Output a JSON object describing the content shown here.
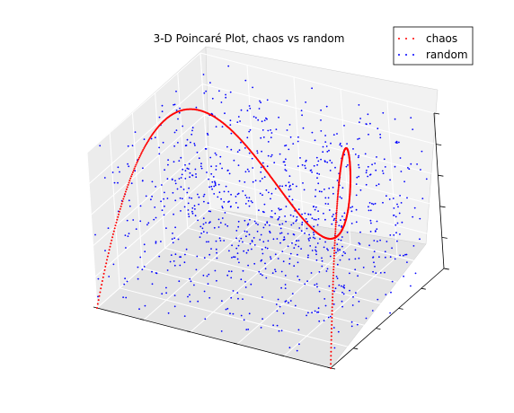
{
  "chart_data": {
    "type": "scatter",
    "dimensions": 3,
    "title": "3-D Poincaré Plot, chaos vs random",
    "xlabel": "",
    "ylabel": "",
    "zlabel": "",
    "xlim": [
      0,
      1
    ],
    "ylim": [
      0,
      1
    ],
    "zlim": [
      0,
      1
    ],
    "grid": true,
    "legend_position": "top-right",
    "series": [
      {
        "name": "chaos",
        "color": "#ff0000",
        "marker": "point",
        "description_of_shape": "logistic map r=4 triples (x_n, x_n+1, x_n+2)",
        "points": [
          [
            0.02,
            0.0784,
            0.2891
          ],
          [
            0.05,
            0.19,
            0.6156
          ],
          [
            0.08,
            0.2944,
            0.8313
          ],
          [
            0.11,
            0.3916,
            0.953
          ],
          [
            0.14,
            0.4816,
            0.9986
          ],
          [
            0.17,
            0.5644,
            0.9834
          ],
          [
            0.2,
            0.64,
            0.9216
          ],
          [
            0.23,
            0.7084,
            0.8263
          ],
          [
            0.26,
            0.7696,
            0.7092
          ],
          [
            0.29,
            0.8236,
            0.5811
          ],
          [
            0.32,
            0.8704,
            0.4512
          ],
          [
            0.35,
            0.91,
            0.3276
          ],
          [
            0.38,
            0.9424,
            0.2171
          ],
          [
            0.41,
            0.9676,
            0.1254
          ],
          [
            0.44,
            0.9856,
            0.0568
          ],
          [
            0.47,
            0.9964,
            0.0143
          ],
          [
            0.5,
            1.0,
            0.0
          ],
          [
            0.53,
            0.9964,
            0.0143
          ],
          [
            0.56,
            0.9856,
            0.0568
          ],
          [
            0.59,
            0.9676,
            0.1254
          ],
          [
            0.62,
            0.9424,
            0.2171
          ],
          [
            0.65,
            0.91,
            0.3276
          ],
          [
            0.68,
            0.8704,
            0.4512
          ],
          [
            0.71,
            0.8236,
            0.5811
          ],
          [
            0.74,
            0.7696,
            0.7092
          ],
          [
            0.77,
            0.7084,
            0.8263
          ],
          [
            0.8,
            0.64,
            0.9216
          ],
          [
            0.83,
            0.5644,
            0.9834
          ],
          [
            0.86,
            0.4816,
            0.9986
          ],
          [
            0.89,
            0.3916,
            0.953
          ],
          [
            0.92,
            0.2944,
            0.8313
          ],
          [
            0.95,
            0.19,
            0.6156
          ],
          [
            0.98,
            0.0784,
            0.2891
          ]
        ]
      },
      {
        "name": "random",
        "color": "#0000ff",
        "marker": "point",
        "description_of_shape": "about 1000 uniformly distributed random triples in the unit cube",
        "count": 1000
      }
    ],
    "axes_ticks": {
      "x": [
        "",
        "",
        "",
        "",
        "",
        ""
      ],
      "y": [
        "",
        "",
        "",
        "",
        "",
        ""
      ],
      "z": [
        "",
        "",
        "",
        "",
        "",
        ""
      ]
    }
  },
  "legend": {
    "items": [
      {
        "label": "chaos",
        "color": "#ff0000"
      },
      {
        "label": "random",
        "color": "#0000ff"
      }
    ]
  },
  "colors": {
    "pane_floor": "#e8e8e8",
    "pane_left": "#ebebeb",
    "pane_right": "#f1f1f1",
    "grid_line": "#ffffff",
    "axis_line": "#000000"
  }
}
